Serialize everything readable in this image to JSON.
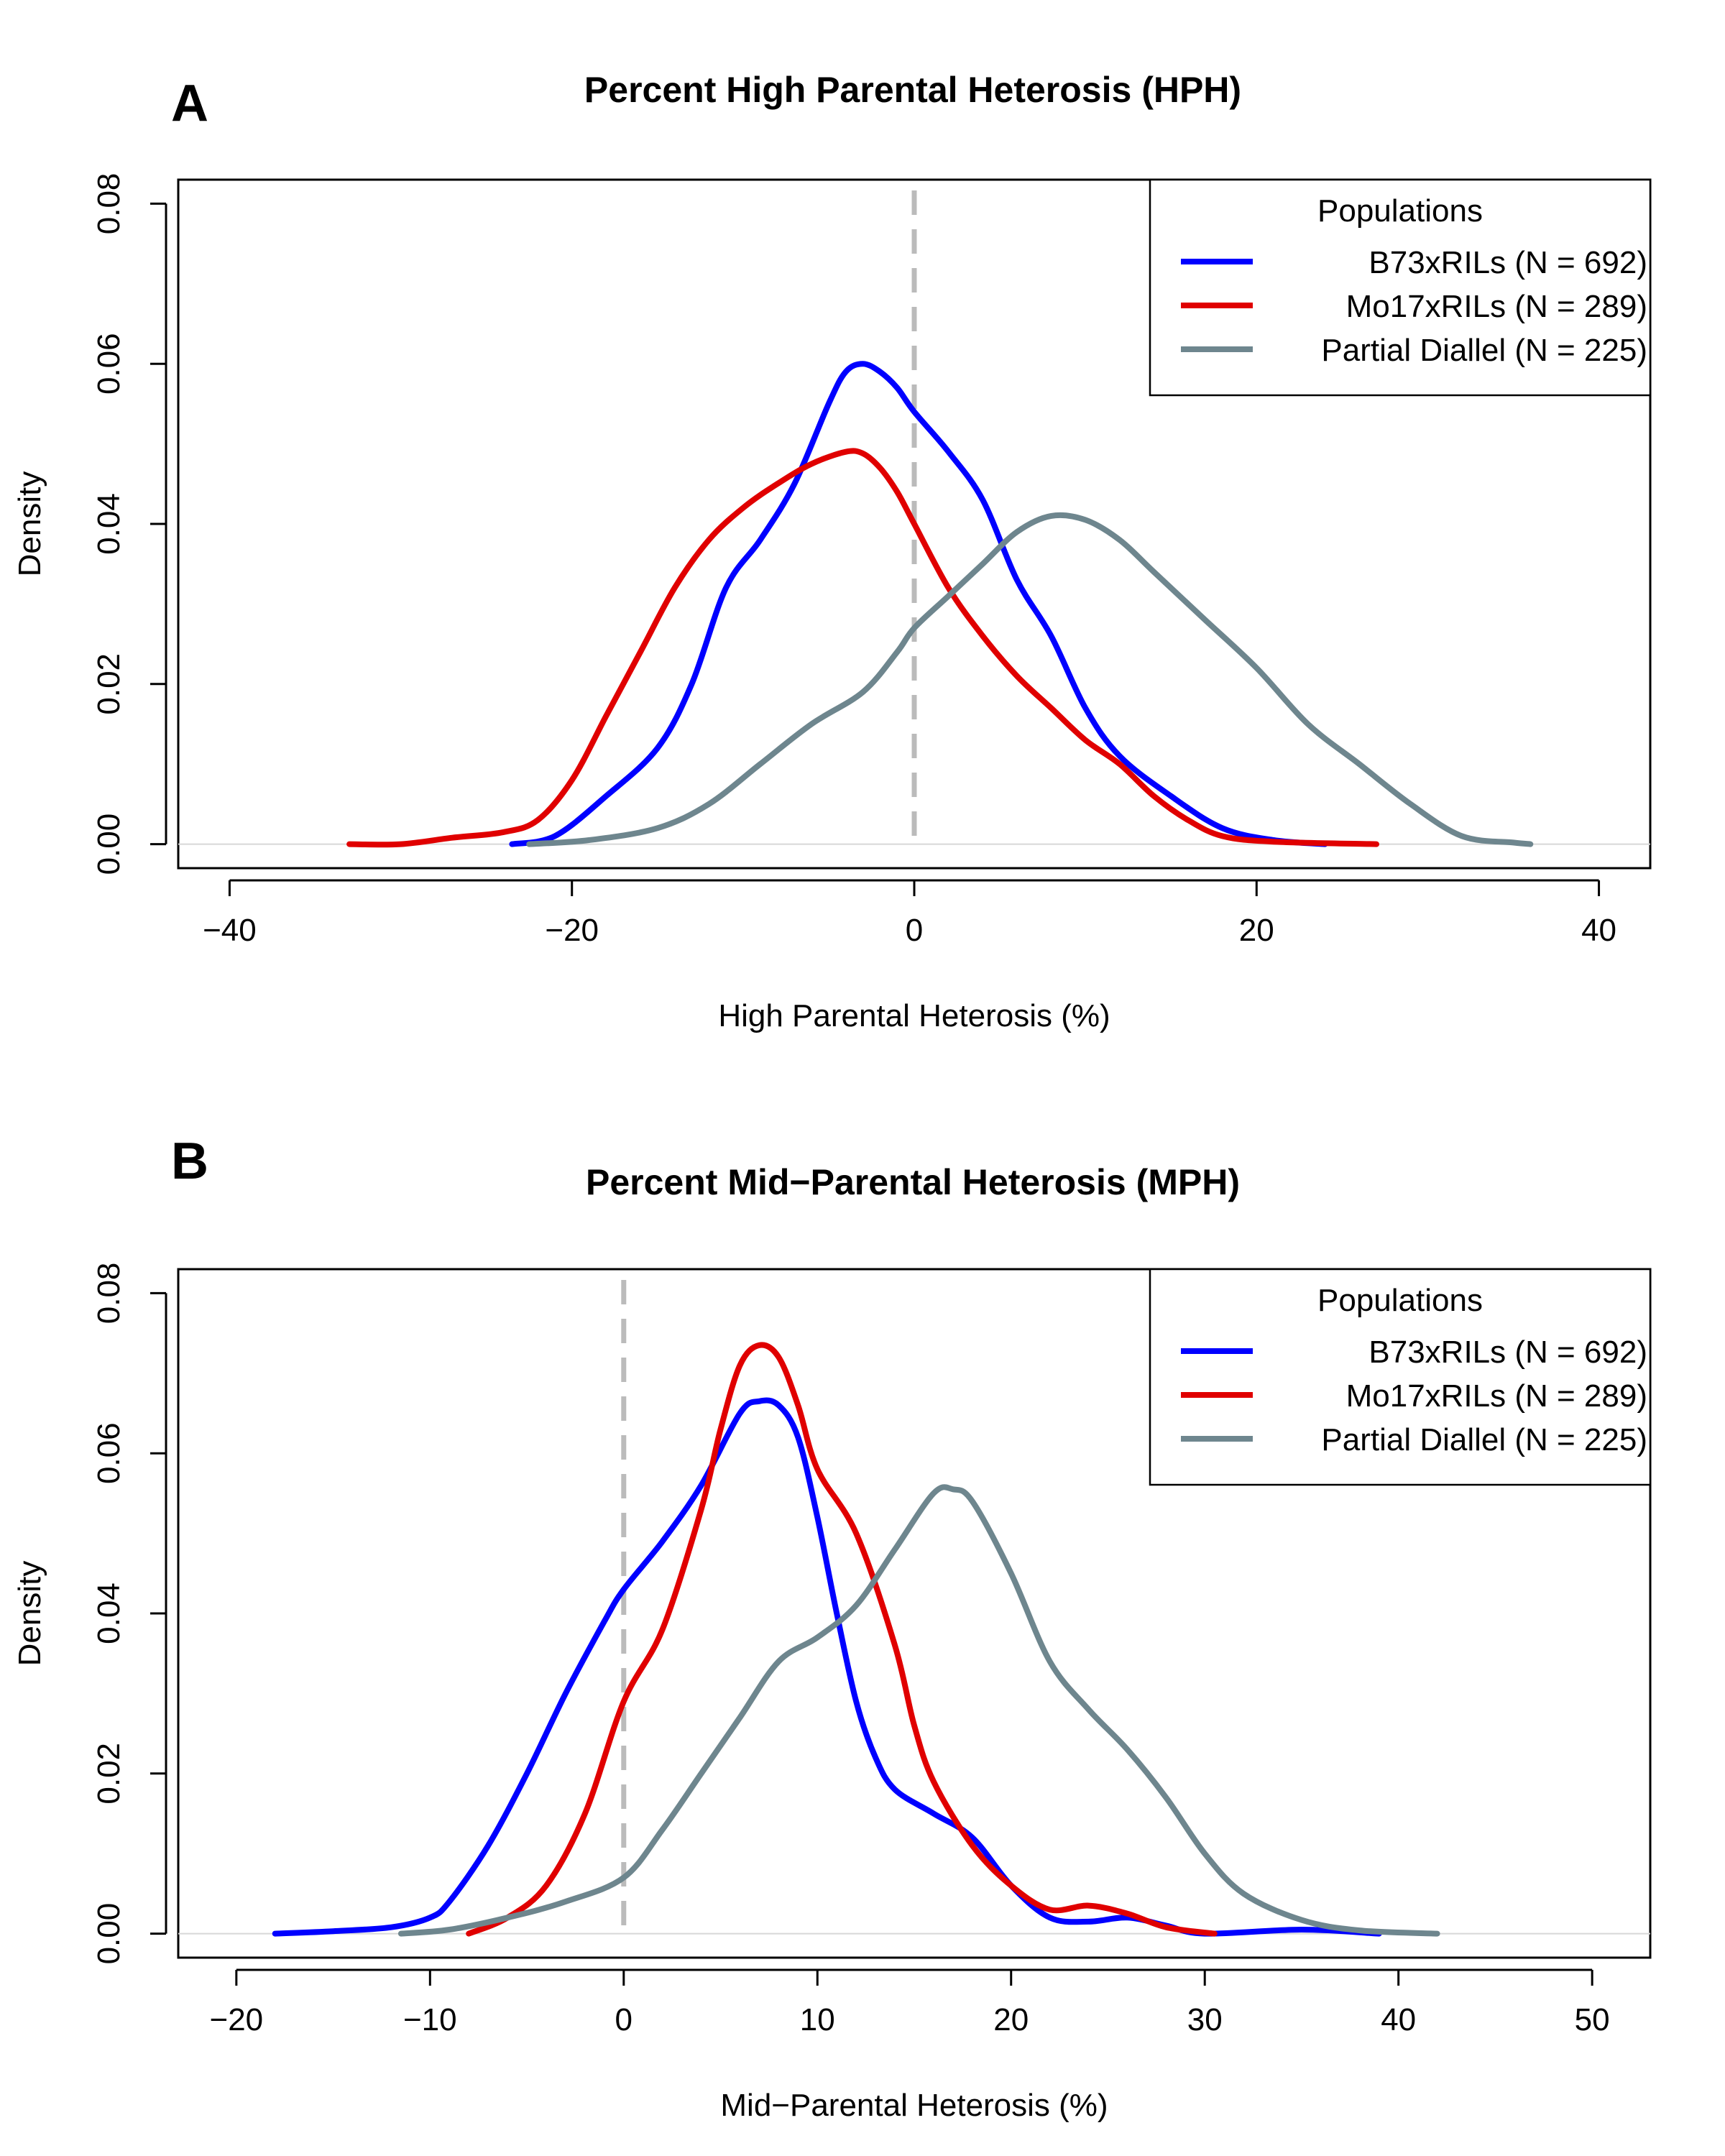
{
  "panels": [
    {
      "letter": "A",
      "title": "Percent High Parental Heterosis (HPH)",
      "xlabel": "High Parental Heterosis (%)",
      "ylabel": "Density"
    },
    {
      "letter": "B",
      "title": "Percent Mid−Parental Heterosis (MPH)",
      "xlabel": "Mid−Parental Heterosis (%)",
      "ylabel": "Density"
    }
  ],
  "chart_data": [
    {
      "type": "line",
      "title": "Percent High Parental Heterosis (HPH)",
      "xlabel": "High Parental Heterosis (%)",
      "ylabel": "Density",
      "xlim": [
        -43,
        43
      ],
      "ylim": [
        -0.003,
        0.083
      ],
      "xticks": [
        -40,
        -20,
        0,
        20,
        40
      ],
      "xtick_labels": [
        "−40",
        "−20",
        "0",
        "20",
        "40"
      ],
      "yticks": [
        0.0,
        0.02,
        0.04,
        0.06,
        0.08
      ],
      "ytick_labels": [
        "0.00",
        "0.02",
        "0.04",
        "0.06",
        "0.08"
      ],
      "reference_line_x": 0,
      "legend": {
        "title": "Populations",
        "position": "top-right"
      },
      "series": [
        {
          "name": "B73xRILs (N = 692)",
          "color": "#0000ff",
          "points": [
            [
              -23.5,
              0
            ],
            [
              -21,
              0.001
            ],
            [
              -18,
              0.006
            ],
            [
              -15,
              0.012
            ],
            [
              -13,
              0.02
            ],
            [
              -11,
              0.032
            ],
            [
              -9,
              0.038
            ],
            [
              -7,
              0.045
            ],
            [
              -5,
              0.055
            ],
            [
              -4,
              0.059
            ],
            [
              -3,
              0.06
            ],
            [
              -2,
              0.059
            ],
            [
              -1,
              0.057
            ],
            [
              0,
              0.054
            ],
            [
              2,
              0.049
            ],
            [
              4,
              0.043
            ],
            [
              6,
              0.033
            ],
            [
              8,
              0.026
            ],
            [
              10,
              0.017
            ],
            [
              12,
              0.011
            ],
            [
              15,
              0.006
            ],
            [
              18,
              0.002
            ],
            [
              21,
              0.0005
            ],
            [
              24,
              0
            ]
          ]
        },
        {
          "name": "Mo17xRILs (N = 289)",
          "color": "#e00000",
          "points": [
            [
              -33,
              0
            ],
            [
              -30,
              0
            ],
            [
              -27,
              0.0008
            ],
            [
              -24,
              0.0015
            ],
            [
              -22,
              0.003
            ],
            [
              -20,
              0.008
            ],
            [
              -18,
              0.016
            ],
            [
              -16,
              0.024
            ],
            [
              -14,
              0.032
            ],
            [
              -12,
              0.038
            ],
            [
              -10,
              0.042
            ],
            [
              -8,
              0.045
            ],
            [
              -6,
              0.0475
            ],
            [
              -4,
              0.049
            ],
            [
              -3,
              0.0488
            ],
            [
              -2,
              0.047
            ],
            [
              -1,
              0.044
            ],
            [
              0,
              0.04
            ],
            [
              2,
              0.032
            ],
            [
              4,
              0.026
            ],
            [
              6,
              0.021
            ],
            [
              8,
              0.017
            ],
            [
              10,
              0.013
            ],
            [
              12,
              0.01
            ],
            [
              14,
              0.006
            ],
            [
              16,
              0.003
            ],
            [
              18,
              0.001
            ],
            [
              21,
              0.0003
            ],
            [
              27,
              0
            ]
          ]
        },
        {
          "name": "Partial Diallel (N = 225)",
          "color": "#6e868e",
          "points": [
            [
              -22.5,
              0
            ],
            [
              -19,
              0.0005
            ],
            [
              -15,
              0.002
            ],
            [
              -12,
              0.005
            ],
            [
              -9,
              0.01
            ],
            [
              -6,
              0.015
            ],
            [
              -3,
              0.019
            ],
            [
              -1,
              0.024
            ],
            [
              0,
              0.027
            ],
            [
              2,
              0.031
            ],
            [
              4,
              0.035
            ],
            [
              6,
              0.039
            ],
            [
              8,
              0.041
            ],
            [
              10,
              0.0405
            ],
            [
              12,
              0.038
            ],
            [
              14,
              0.034
            ],
            [
              17,
              0.028
            ],
            [
              20,
              0.022
            ],
            [
              23,
              0.015
            ],
            [
              26,
              0.01
            ],
            [
              29,
              0.005
            ],
            [
              32,
              0.001
            ],
            [
              35,
              0.0002
            ],
            [
              36,
              0
            ]
          ]
        }
      ]
    },
    {
      "type": "line",
      "title": "Percent Mid−Parental Heterosis (MPH)",
      "xlabel": "Mid−Parental Heterosis (%)",
      "ylabel": "Density",
      "xlim": [
        -23,
        53
      ],
      "ylim": [
        -0.003,
        0.083
      ],
      "xticks": [
        -20,
        -10,
        0,
        10,
        20,
        30,
        40,
        50
      ],
      "xtick_labels": [
        "−20",
        "−10",
        "0",
        "10",
        "20",
        "30",
        "40",
        "50"
      ],
      "yticks": [
        0.0,
        0.02,
        0.04,
        0.06,
        0.08
      ],
      "ytick_labels": [
        "0.00",
        "0.02",
        "0.04",
        "0.06",
        "0.08"
      ],
      "reference_line_x": 0,
      "legend": {
        "title": "Populations",
        "position": "top-right"
      },
      "series": [
        {
          "name": "B73xRILs (N = 692)",
          "color": "#0000ff",
          "points": [
            [
              -18,
              0
            ],
            [
              -15,
              0.0003
            ],
            [
              -12,
              0.0008
            ],
            [
              -10,
              0.002
            ],
            [
              -9,
              0.004
            ],
            [
              -7,
              0.011
            ],
            [
              -5,
              0.02
            ],
            [
              -3,
              0.03
            ],
            [
              -1,
              0.039
            ],
            [
              0,
              0.043
            ],
            [
              2,
              0.049
            ],
            [
              4,
              0.056
            ],
            [
              6,
              0.065
            ],
            [
              7,
              0.0665
            ],
            [
              8,
              0.066
            ],
            [
              9,
              0.062
            ],
            [
              10,
              0.052
            ],
            [
              11,
              0.04
            ],
            [
              12,
              0.029
            ],
            [
              13,
              0.022
            ],
            [
              14,
              0.018
            ],
            [
              16,
              0.015
            ],
            [
              18,
              0.012
            ],
            [
              20,
              0.006
            ],
            [
              22,
              0.002
            ],
            [
              24,
              0.0015
            ],
            [
              26,
              0.002
            ],
            [
              28,
              0.001
            ],
            [
              30,
              0
            ],
            [
              35,
              0.0005
            ],
            [
              39,
              0
            ]
          ]
        },
        {
          "name": "Mo17xRILs (N = 289)",
          "color": "#e00000",
          "points": [
            [
              -8,
              0
            ],
            [
              -6,
              0.002
            ],
            [
              -4,
              0.006
            ],
            [
              -2,
              0.015
            ],
            [
              0,
              0.029
            ],
            [
              2,
              0.038
            ],
            [
              4,
              0.053
            ],
            [
              5,
              0.063
            ],
            [
              6,
              0.071
            ],
            [
              7,
              0.0735
            ],
            [
              8,
              0.072
            ],
            [
              9,
              0.066
            ],
            [
              10,
              0.058
            ],
            [
              12,
              0.05
            ],
            [
              14,
              0.036
            ],
            [
              15,
              0.026
            ],
            [
              16,
              0.019
            ],
            [
              18,
              0.011
            ],
            [
              20,
              0.006
            ],
            [
              22,
              0.003
            ],
            [
              24,
              0.0035
            ],
            [
              26,
              0.0025
            ],
            [
              28,
              0.0008
            ],
            [
              30.5,
              0
            ]
          ]
        },
        {
          "name": "Partial Diallel (N = 225)",
          "color": "#6e868e",
          "points": [
            [
              -11.5,
              0
            ],
            [
              -9,
              0.0005
            ],
            [
              -6,
              0.002
            ],
            [
              -3,
              0.004
            ],
            [
              0,
              0.007
            ],
            [
              2,
              0.013
            ],
            [
              4,
              0.02
            ],
            [
              6,
              0.027
            ],
            [
              8,
              0.034
            ],
            [
              10,
              0.037
            ],
            [
              12,
              0.041
            ],
            [
              14,
              0.048
            ],
            [
              16,
              0.055
            ],
            [
              17,
              0.0555
            ],
            [
              18,
              0.054
            ],
            [
              20,
              0.045
            ],
            [
              22,
              0.034
            ],
            [
              24,
              0.028
            ],
            [
              26,
              0.023
            ],
            [
              28,
              0.017
            ],
            [
              30,
              0.01
            ],
            [
              32,
              0.005
            ],
            [
              35,
              0.0017
            ],
            [
              38,
              0.0004
            ],
            [
              42,
              0
            ]
          ]
        }
      ]
    }
  ]
}
